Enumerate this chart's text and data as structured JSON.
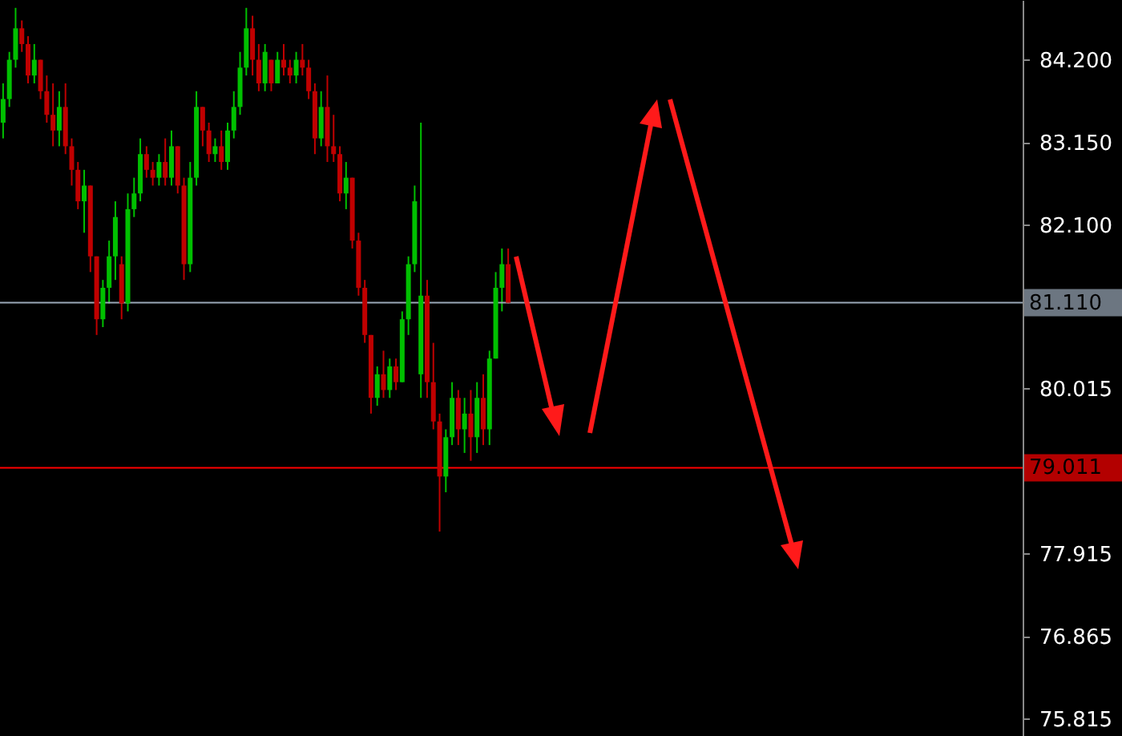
{
  "chart_data": {
    "type": "candlestick",
    "tick_labels": "y",
    "grid": false,
    "categories": [
      null,
      null,
      null,
      null,
      null,
      null,
      null,
      null,
      null,
      null,
      null,
      null,
      null,
      null,
      null,
      null,
      null,
      null,
      null,
      null,
      null,
      null,
      null,
      null,
      null,
      null,
      null,
      null,
      null,
      null,
      null,
      null,
      null,
      null,
      null,
      null,
      null,
      null,
      null,
      null,
      null,
      null,
      null,
      null,
      null,
      null,
      null,
      null,
      null,
      null,
      null,
      null,
      null,
      null,
      null,
      null,
      null,
      null,
      null,
      null,
      null,
      null,
      null,
      null,
      null,
      null,
      null,
      null,
      null,
      null,
      null,
      null,
      null,
      null,
      null,
      null,
      null,
      null,
      null,
      null,
      null,
      null,
      null,
      null,
      null,
      null,
      null,
      null,
      null,
      null,
      null,
      null,
      null,
      null,
      null,
      null,
      null,
      null,
      null,
      null,
      null,
      null,
      null,
      null,
      null,
      null,
      null,
      null,
      null,
      null,
      null,
      null,
      null,
      null,
      null,
      null,
      null,
      null,
      null,
      null,
      null,
      null,
      null,
      null,
      null,
      null,
      null,
      null,
      null,
      null,
      null,
      null,
      null,
      null,
      null,
      null,
      null,
      null,
      null,
      null,
      null,
      null,
      null,
      null,
      null,
      null,
      null,
      null,
      null,
      null,
      null,
      null,
      null,
      null,
      null,
      null,
      null,
      null,
      null,
      null,
      null,
      null,
      null,
      null
    ],
    "ylim": [
      75.6,
      84.96
    ],
    "yticks": [
      {
        "value": 84.2,
        "label": "84.200"
      },
      {
        "value": 83.15,
        "label": "83.150"
      },
      {
        "value": 82.1,
        "label": "82.100"
      },
      {
        "value": 80.015,
        "label": "80.015"
      },
      {
        "value": 77.915,
        "label": "77.915"
      },
      {
        "value": 76.865,
        "label": "76.865"
      },
      {
        "value": 75.815,
        "label": "75.815"
      }
    ],
    "ohlc": [
      [
        83.4,
        83.9,
        83.2,
        83.7
      ],
      [
        83.7,
        84.3,
        83.6,
        84.2
      ],
      [
        84.2,
        84.86,
        84.1,
        84.6
      ],
      [
        84.6,
        84.7,
        84.3,
        84.4
      ],
      [
        84.4,
        84.5,
        83.9,
        84.0
      ],
      [
        84.0,
        84.4,
        83.9,
        84.2
      ],
      [
        84.2,
        84.2,
        83.7,
        83.8
      ],
      [
        83.8,
        84.0,
        83.4,
        83.5
      ],
      [
        83.5,
        83.9,
        83.1,
        83.3
      ],
      [
        83.3,
        83.8,
        83.1,
        83.6
      ],
      [
        83.6,
        83.9,
        83.0,
        83.1
      ],
      [
        83.1,
        83.2,
        82.6,
        82.8
      ],
      [
        82.8,
        82.9,
        82.3,
        82.4
      ],
      [
        82.4,
        82.8,
        82.0,
        82.6
      ],
      [
        82.6,
        82.6,
        81.5,
        81.7
      ],
      [
        81.7,
        81.7,
        80.7,
        80.9
      ],
      [
        80.9,
        81.4,
        80.8,
        81.3
      ],
      [
        81.3,
        81.9,
        81.1,
        81.7
      ],
      [
        81.7,
        82.4,
        81.4,
        82.2
      ],
      [
        81.6,
        81.7,
        80.9,
        81.1
      ],
      [
        81.1,
        82.5,
        81.0,
        82.3
      ],
      [
        82.3,
        82.7,
        82.2,
        82.5
      ],
      [
        82.5,
        83.2,
        82.4,
        83.0
      ],
      [
        83.0,
        83.1,
        82.7,
        82.8
      ],
      [
        82.8,
        82.9,
        82.6,
        82.7
      ],
      [
        82.7,
        83.0,
        82.6,
        82.9
      ],
      [
        82.9,
        83.2,
        82.6,
        82.7
      ],
      [
        82.7,
        83.3,
        82.6,
        83.1
      ],
      [
        83.1,
        83.1,
        82.5,
        82.6
      ],
      [
        82.6,
        82.7,
        81.4,
        81.6
      ],
      [
        81.6,
        82.9,
        81.5,
        82.7
      ],
      [
        82.7,
        83.8,
        82.6,
        83.6
      ],
      [
        83.6,
        83.6,
        83.1,
        83.3
      ],
      [
        83.3,
        83.4,
        82.9,
        83.0
      ],
      [
        83.0,
        83.2,
        82.9,
        83.1
      ],
      [
        83.1,
        83.3,
        82.8,
        82.9
      ],
      [
        82.9,
        83.4,
        82.8,
        83.3
      ],
      [
        83.3,
        83.8,
        83.2,
        83.6
      ],
      [
        83.6,
        84.3,
        83.5,
        84.1
      ],
      [
        84.1,
        84.86,
        84.0,
        84.6
      ],
      [
        84.6,
        84.76,
        84.0,
        84.2
      ],
      [
        84.2,
        84.4,
        83.8,
        83.9
      ],
      [
        83.9,
        84.4,
        83.8,
        84.3
      ],
      [
        84.2,
        84.2,
        83.8,
        83.9
      ],
      [
        83.9,
        84.3,
        83.9,
        84.2
      ],
      [
        84.2,
        84.4,
        84.0,
        84.1
      ],
      [
        84.1,
        84.2,
        83.9,
        84.0
      ],
      [
        84.0,
        84.3,
        83.9,
        84.2
      ],
      [
        84.2,
        84.4,
        84.0,
        84.1
      ],
      [
        84.1,
        84.2,
        83.7,
        83.8
      ],
      [
        83.8,
        83.9,
        83.0,
        83.2
      ],
      [
        83.2,
        83.8,
        83.1,
        83.6
      ],
      [
        83.6,
        84.0,
        82.9,
        83.1
      ],
      [
        83.1,
        83.5,
        82.9,
        83.0
      ],
      [
        83.0,
        83.1,
        82.4,
        82.5
      ],
      [
        82.5,
        82.9,
        82.3,
        82.7
      ],
      [
        82.7,
        82.7,
        81.8,
        81.9
      ],
      [
        81.9,
        82.0,
        81.2,
        81.3
      ],
      [
        81.3,
        81.4,
        80.6,
        80.7
      ],
      [
        80.7,
        80.7,
        79.7,
        79.9
      ],
      [
        79.9,
        80.3,
        79.8,
        80.2
      ],
      [
        80.2,
        80.5,
        79.9,
        80.0
      ],
      [
        80.0,
        80.4,
        79.9,
        80.3
      ],
      [
        80.3,
        80.4,
        80.0,
        80.1
      ],
      [
        80.1,
        81.0,
        80.1,
        80.9
      ],
      [
        80.9,
        81.7,
        80.7,
        81.6
      ],
      [
        81.6,
        82.6,
        81.5,
        82.4
      ],
      [
        80.2,
        83.4,
        79.9,
        81.2
      ],
      [
        81.2,
        81.4,
        79.9,
        80.1
      ],
      [
        80.1,
        80.6,
        79.5,
        79.6
      ],
      [
        79.6,
        79.7,
        78.2,
        78.9
      ],
      [
        78.9,
        79.5,
        78.7,
        79.4
      ],
      [
        79.4,
        80.1,
        79.3,
        79.9
      ],
      [
        79.9,
        80.0,
        79.3,
        79.5
      ],
      [
        79.5,
        79.9,
        79.2,
        79.7
      ],
      [
        79.7,
        80.0,
        79.1,
        79.4
      ],
      [
        79.4,
        80.1,
        79.2,
        79.9
      ],
      [
        79.9,
        80.2,
        79.3,
        79.5
      ],
      [
        79.5,
        80.5,
        79.3,
        80.4
      ],
      [
        80.4,
        81.5,
        80.4,
        81.3
      ],
      [
        81.3,
        81.8,
        81.0,
        81.6
      ],
      [
        81.6,
        81.8,
        81.1,
        81.11
      ],
      null,
      null,
      null,
      null,
      null,
      null,
      null,
      null,
      null,
      null,
      null,
      null,
      null,
      null,
      null,
      null,
      null,
      null,
      null,
      null,
      null,
      null,
      null,
      null,
      null,
      null,
      null,
      null,
      null,
      null,
      null,
      null,
      null,
      null,
      null,
      null,
      null,
      null,
      null,
      null,
      null,
      null,
      null,
      null,
      null,
      null,
      null,
      null,
      null,
      null,
      null,
      null,
      null,
      null,
      null,
      null,
      null,
      null,
      null,
      null,
      null,
      null,
      null,
      null,
      null,
      null,
      null,
      null,
      null,
      null,
      null,
      null,
      null,
      null,
      null,
      null,
      null,
      null,
      null,
      null,
      null,
      null
    ],
    "colors": [
      "#00c000",
      "#00c000",
      "#00c000",
      "#c00000",
      "#c00000",
      "#00c000",
      "#c00000",
      "#c00000",
      "#c00000",
      "#00c000",
      "#c00000",
      "#c00000",
      "#c00000",
      "#00c000",
      "#c00000",
      "#c00000",
      "#00c000",
      "#00c000",
      "#00c000",
      "#c00000",
      "#00c000",
      "#00c000",
      "#00c000",
      "#c00000",
      "#c00000",
      "#00c000",
      "#c00000",
      "#00c000",
      "#c00000",
      "#c00000",
      "#00c000",
      "#00c000",
      "#c00000",
      "#c00000",
      "#00c000",
      "#c00000",
      "#00c000",
      "#00c000",
      "#00c000",
      "#00c000",
      "#c00000",
      "#c00000",
      "#00c000",
      "#c00000",
      "#00c000",
      "#c00000",
      "#c00000",
      "#00c000",
      "#c00000",
      "#c00000",
      "#c00000",
      "#00c000",
      "#c00000",
      "#c00000",
      "#c00000",
      "#00c000",
      "#c00000",
      "#c00000",
      "#c00000",
      "#c00000",
      "#00c000",
      "#c00000",
      "#00c000",
      "#c00000",
      "#00c000",
      "#00c000",
      "#00c000",
      "#00c000",
      "#c00000",
      "#c00000",
      "#c00000",
      "#00c000",
      "#00c000",
      "#c00000",
      "#00c000",
      "#c00000",
      "#00c000",
      "#c00000",
      "#00c000",
      "#00c000",
      "#00c000",
      "#c00000",
      null,
      null,
      null,
      null,
      null,
      null,
      null,
      null,
      null,
      null,
      null,
      null,
      null,
      null,
      null,
      null,
      null,
      null,
      null,
      null,
      null,
      null,
      null,
      null,
      null,
      null,
      null,
      null,
      null,
      null,
      null,
      null,
      null,
      null,
      null,
      null,
      null,
      null,
      null,
      null,
      null,
      null,
      null,
      null,
      null,
      null,
      null,
      null,
      null,
      null,
      null,
      null,
      null,
      null,
      null,
      null,
      null,
      null,
      null,
      null,
      null,
      null,
      null,
      null,
      null,
      null,
      null,
      null,
      null,
      null,
      null,
      null,
      null,
      null,
      null,
      null,
      null,
      null,
      null,
      null,
      null,
      null
    ],
    "ref_lines": [
      {
        "axis": "y",
        "value": 81.11,
        "label": "81.110",
        "color": "#9aa8b8"
      },
      {
        "axis": "y",
        "value": 79.011,
        "label": "79.011",
        "color": "#ff0000"
      }
    ]
  }
}
